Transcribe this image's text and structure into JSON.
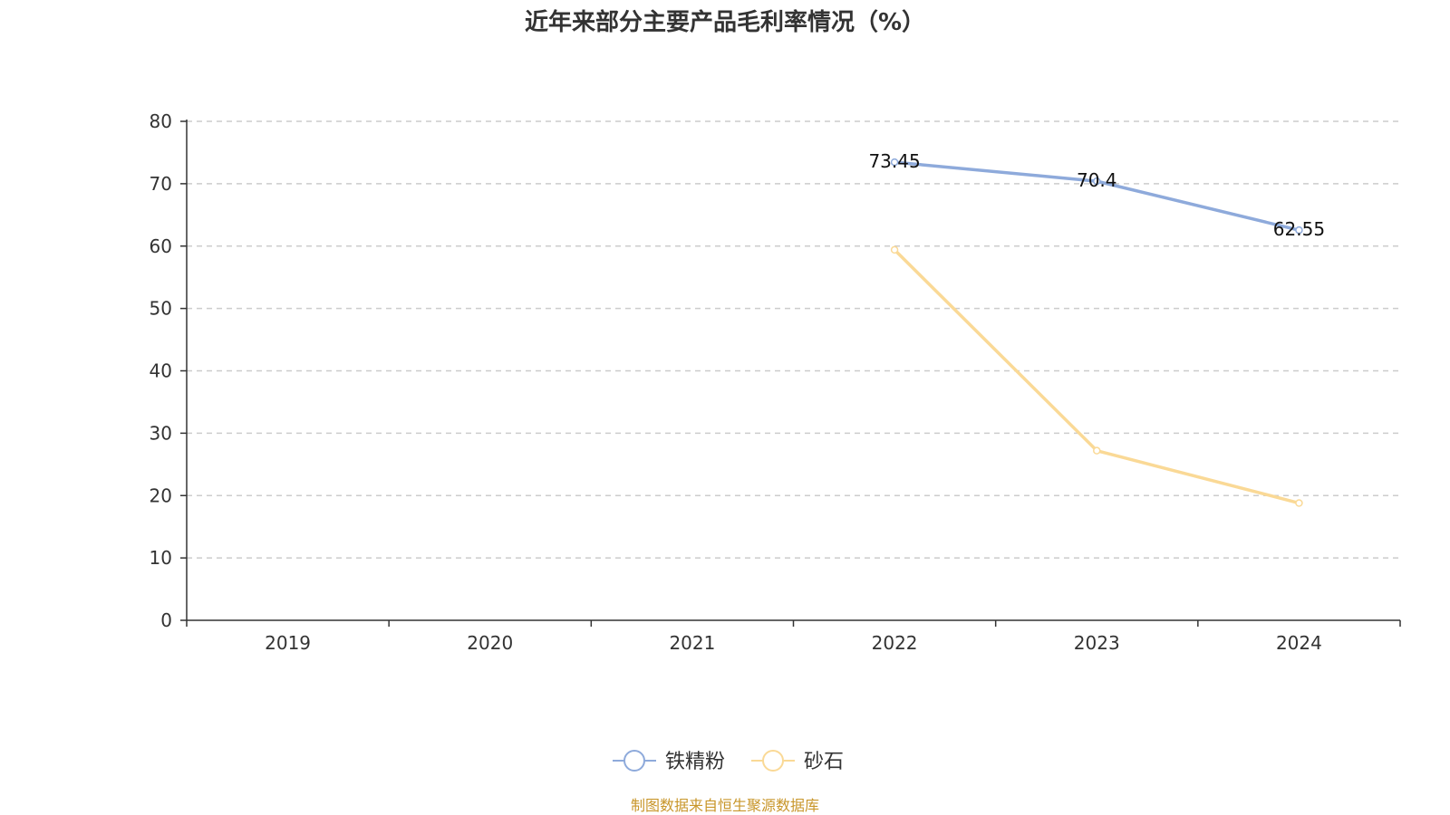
{
  "chart_data": {
    "type": "line",
    "title": "近年来部分主要产品毛利率情况（%）",
    "categories": [
      "2019",
      "2020",
      "2021",
      "2022",
      "2023",
      "2024"
    ],
    "ylim": [
      0,
      80
    ],
    "yticks": [
      0,
      10,
      20,
      30,
      40,
      50,
      60,
      70,
      80
    ],
    "grid": true,
    "legend_position": "bottom",
    "series": [
      {
        "name": "铁精粉",
        "color": "#8eaadb",
        "values": [
          null,
          null,
          null,
          73.45,
          70.4,
          62.55
        ],
        "data_labels": [
          "",
          "",
          "",
          "73.45",
          "70.4",
          "62.55"
        ]
      },
      {
        "name": "砂石",
        "color": "#fad996",
        "values": [
          null,
          null,
          null,
          59.4,
          27.2,
          18.8
        ],
        "data_labels": [
          "",
          "",
          "",
          "",
          "",
          ""
        ]
      }
    ],
    "source": "制图数据来自恒生聚源数据库"
  }
}
